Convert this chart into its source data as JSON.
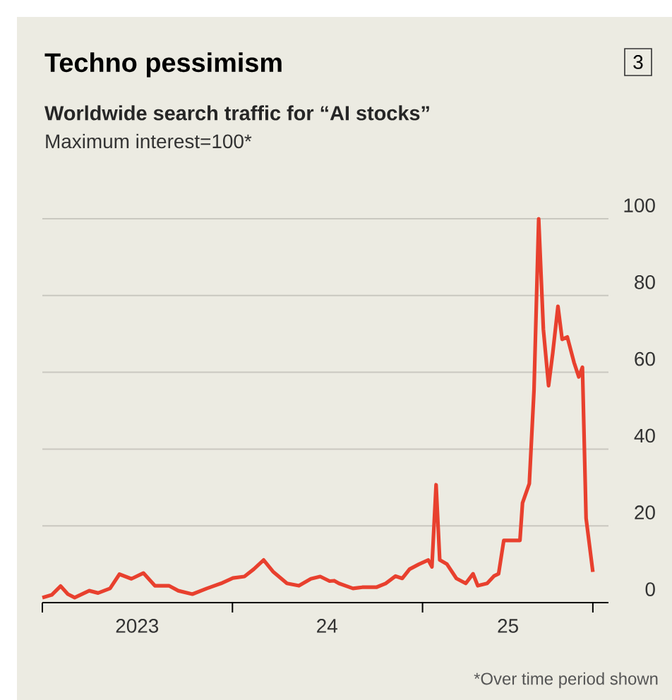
{
  "chart_data": {
    "type": "line",
    "title": "Techno pessimism",
    "subtitle": "Worldwide search traffic for “AI stocks”",
    "ylabel": "Maximum interest=100*",
    "annotations": [
      "3",
      "*Over time period shown"
    ],
    "x": [
      "2023-01-01",
      "2023-01-19",
      "2023-02-05",
      "2023-02-19",
      "2023-03-04",
      "2023-04-01",
      "2023-04-18",
      "2023-05-11",
      "2023-05-29",
      "2023-06-21",
      "2023-07-14",
      "2023-08-05",
      "2023-09-01",
      "2023-09-19",
      "2023-10-16",
      "2023-11-13",
      "2023-12-10",
      "2024-01-02",
      "2024-01-24",
      "2024-02-11",
      "2024-03-01",
      "2024-03-19",
      "2024-04-15",
      "2024-05-08",
      "2024-05-31",
      "2024-06-18",
      "2024-07-06",
      "2024-07-15",
      "2024-07-24",
      "2024-08-20",
      "2024-09-07",
      "2024-10-04",
      "2024-10-22",
      "2024-11-10",
      "2024-11-23",
      "2024-12-07",
      "2024-12-25",
      "2025-01-12",
      "2025-01-19",
      "2025-01-27",
      "2025-02-03",
      "2025-02-17",
      "2025-03-07",
      "2025-03-25",
      "2025-04-08",
      "2025-04-17",
      "2025-05-05",
      "2025-05-18",
      "2025-05-27",
      "2025-06-06",
      "2025-06-23",
      "2025-07-07",
      "2025-07-12",
      "2025-07-25",
      "2025-08-03",
      "2025-08-12",
      "2025-08-21",
      "2025-08-31",
      "2025-09-08",
      "2025-09-18",
      "2025-09-26",
      "2025-10-06",
      "2025-10-19",
      "2025-10-28",
      "2025-11-04",
      "2025-11-11",
      "2025-11-24"
    ],
    "values": [
      1.3,
      2,
      4.3,
      2.2,
      1.3,
      3.1,
      2.5,
      3.7,
      7.4,
      6.2,
      7.7,
      4.4,
      4.4,
      3.1,
      2.2,
      3.7,
      5,
      6.4,
      6.8,
      8.7,
      11.1,
      8.1,
      5,
      4.4,
      6.2,
      6.8,
      5.6,
      5.7,
      5,
      3.7,
      4,
      4,
      5,
      6.9,
      6.3,
      8.7,
      10,
      11.1,
      9.3,
      30.7,
      11.1,
      10,
      6.3,
      5,
      7.5,
      4.4,
      5,
      6.9,
      7.5,
      16.2,
      16.2,
      16.2,
      26,
      31,
      55.3,
      100,
      71.2,
      56.5,
      65,
      77.2,
      68.6,
      69.2,
      62.5,
      58.8,
      61.3,
      22,
      8
    ],
    "color": "#e8402e",
    "xlim": [
      "2023-01-01",
      "2025-12-24"
    ],
    "xticks": [
      {
        "value": "2023-01-01",
        "label": null
      },
      {
        "value": "2024-01-01",
        "label": null
      },
      {
        "value": "2025-01-01",
        "label": null
      },
      {
        "value": "2025-11-24",
        "label": null
      },
      {
        "value": "2023-07-02",
        "label": "2023"
      },
      {
        "value": "2024-07-01",
        "label": "24"
      },
      {
        "value": "2025-06-14",
        "label": "25"
      }
    ],
    "ylim": [
      0,
      100
    ],
    "yticks": [
      0,
      20,
      40,
      60,
      80,
      100
    ],
    "grid": "y"
  }
}
